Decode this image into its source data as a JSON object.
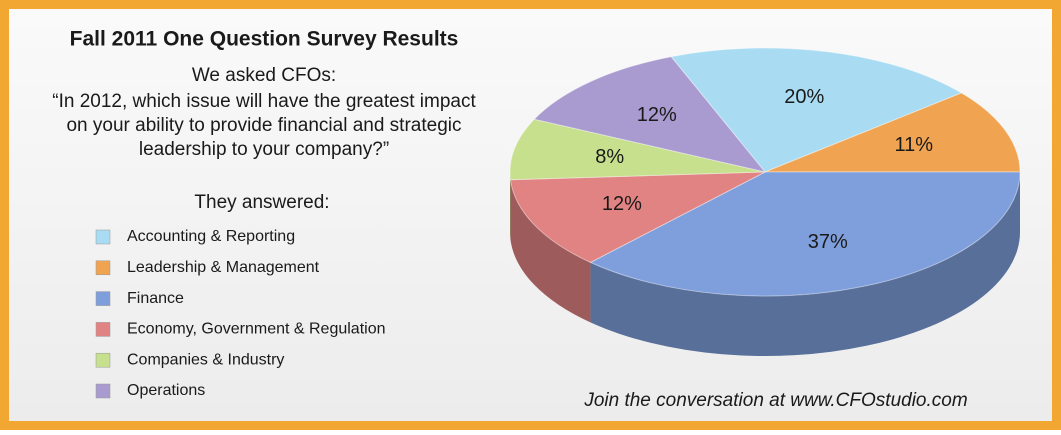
{
  "chart_data": {
    "type": "pie",
    "title": "Fall 2011 One Question Survey Results",
    "subtitle": [
      "We asked CFOs:",
      "“In 2012, which issue will have the greatest impact",
      "on your ability to provide financial and strategic",
      "leadership to your company?”"
    ],
    "legend_title": "They answered:",
    "categories": [
      "Accounting & Reporting",
      "Leadership & Management",
      "Finance",
      "Economy, Government & Regulation",
      "Companies & Industry",
      "Operations"
    ],
    "values": [
      20,
      11,
      37,
      12,
      8,
      12
    ],
    "value_labels": [
      "20%",
      "11%",
      "37%",
      "12%",
      "8%",
      "12%"
    ],
    "colors": [
      "#a9dcf2",
      "#f0a452",
      "#7f9fdc",
      "#e28383",
      "#c6e08e",
      "#a99ad0"
    ],
    "footer": "Join the conversation at www.CFOstudio.com"
  }
}
